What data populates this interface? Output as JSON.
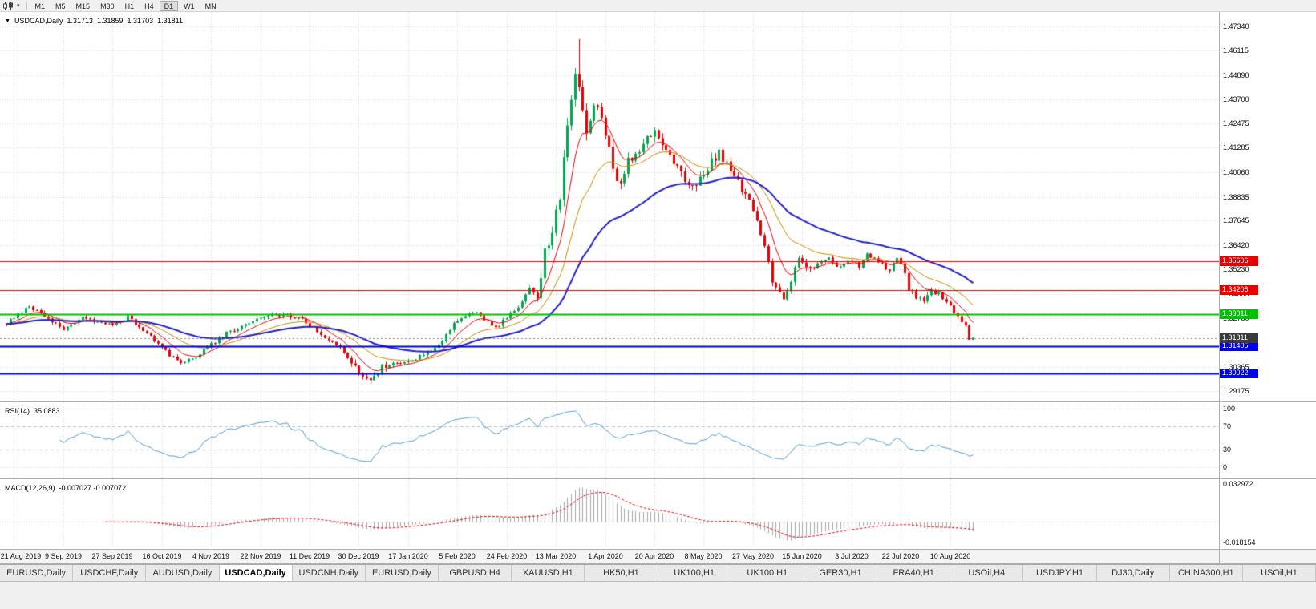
{
  "toolbar": {
    "timeframes": [
      "M1",
      "M5",
      "M15",
      "M30",
      "H1",
      "H4",
      "D1",
      "W1",
      "MN"
    ],
    "active": "D1"
  },
  "icons": {
    "chart_menu_arrow": "▼",
    "toolbar_dropdown_arrow": "▾"
  },
  "header": {
    "symbol": "USDCAD,Daily",
    "open": "1.31713",
    "high": "1.31859",
    "low": "1.31703",
    "close": "1.31811"
  },
  "chart_data": {
    "type": "candlestick",
    "symbol": "USDCAD",
    "timeframe": "Daily",
    "x_tick_labels": [
      "21 Aug 2019",
      "9 Sep 2019",
      "27 Sep 2019",
      "16 Oct 2019",
      "4 Nov 2019",
      "22 Nov 2019",
      "11 Dec 2019",
      "30 Dec 2019",
      "17 Jan 2020",
      "5 Feb 2020",
      "24 Feb 2020",
      "13 Mar 2020",
      "1 Apr 2020",
      "20 Apr 2020",
      "8 May 2020",
      "27 May 2020",
      "15 Jun 2020",
      "3 Jul 2020",
      "22 Jul 2020",
      "10 Aug 2020"
    ],
    "price_axis_labels": [
      "1.47340",
      "1.46115",
      "1.44890",
      "1.43700",
      "1.42475",
      "1.41285",
      "1.40060",
      "1.38835",
      "1.37645",
      "1.36420",
      "1.35230",
      "1.34005",
      "1.32780",
      "1.30365",
      "1.29175"
    ],
    "y_range": [
      1.288,
      1.478
    ],
    "num_candles": 256,
    "candles_per_tick": 13,
    "first_tick_index": 2,
    "session_high": 1.4669,
    "session_low": 1.2952,
    "last_ohlc": {
      "open": 1.31713,
      "high": 1.31859,
      "low": 1.31703,
      "close": 1.31811
    },
    "close_path_anchors": [
      [
        0,
        1.3255
      ],
      [
        3,
        1.33
      ],
      [
        6,
        1.3335
      ],
      [
        10,
        1.3288
      ],
      [
        15,
        1.3225
      ],
      [
        20,
        1.3285
      ],
      [
        24,
        1.3262
      ],
      [
        28,
        1.3244
      ],
      [
        32,
        1.3285
      ],
      [
        36,
        1.322
      ],
      [
        40,
        1.3155
      ],
      [
        43,
        1.3095
      ],
      [
        46,
        1.3052
      ],
      [
        50,
        1.309
      ],
      [
        54,
        1.3148
      ],
      [
        58,
        1.3205
      ],
      [
        62,
        1.3235
      ],
      [
        66,
        1.327
      ],
      [
        70,
        1.33
      ],
      [
        74,
        1.3295
      ],
      [
        78,
        1.3272
      ],
      [
        81,
        1.323
      ],
      [
        84,
        1.3185
      ],
      [
        88,
        1.3135
      ],
      [
        91,
        1.306
      ],
      [
        94,
        1.2985
      ],
      [
        96,
        1.2962
      ],
      [
        99,
        1.3035
      ],
      [
        103,
        1.3058
      ],
      [
        106,
        1.3062
      ],
      [
        109,
        1.3088
      ],
      [
        112,
        1.312
      ],
      [
        115,
        1.3165
      ],
      [
        118,
        1.3255
      ],
      [
        121,
        1.3298
      ],
      [
        124,
        1.3305
      ],
      [
        127,
        1.3262
      ],
      [
        129,
        1.3232
      ],
      [
        132,
        1.328
      ],
      [
        135,
        1.334
      ],
      [
        138,
        1.3425
      ],
      [
        140,
        1.339
      ],
      [
        142,
        1.36
      ],
      [
        144,
        1.372
      ],
      [
        146,
        1.387
      ],
      [
        148,
        1.424
      ],
      [
        150,
        1.451
      ],
      [
        151,
        1.443
      ],
      [
        153,
        1.421
      ],
      [
        155,
        1.436
      ],
      [
        157,
        1.428
      ],
      [
        158,
        1.421
      ],
      [
        160,
        1.401
      ],
      [
        162,
        1.3965
      ],
      [
        164,
        1.406
      ],
      [
        167,
        1.409
      ],
      [
        169,
        1.417
      ],
      [
        171,
        1.42
      ],
      [
        173,
        1.4135
      ],
      [
        176,
        1.4045
      ],
      [
        179,
        1.3975
      ],
      [
        181,
        1.3945
      ],
      [
        184,
        1.3985
      ],
      [
        186,
        1.406
      ],
      [
        188,
        1.4105
      ],
      [
        190,
        1.404
      ],
      [
        192,
        1.3985
      ],
      [
        194,
        1.3925
      ],
      [
        196,
        1.3855
      ],
      [
        198,
        1.376
      ],
      [
        200,
        1.3625
      ],
      [
        202,
        1.347
      ],
      [
        204,
        1.3405
      ],
      [
        205,
        1.338
      ],
      [
        207,
        1.3465
      ],
      [
        209,
        1.357
      ],
      [
        211,
        1.354
      ],
      [
        213,
        1.3532
      ],
      [
        215,
        1.3558
      ],
      [
        217,
        1.358
      ],
      [
        219,
        1.3528
      ],
      [
        221,
        1.3552
      ],
      [
        223,
        1.3565
      ],
      [
        225,
        1.3535
      ],
      [
        227,
        1.3595
      ],
      [
        229,
        1.357
      ],
      [
        231,
        1.3545
      ],
      [
        233,
        1.3515
      ],
      [
        235,
        1.3578
      ],
      [
        237,
        1.351
      ],
      [
        238,
        1.3428
      ],
      [
        240,
        1.3388
      ],
      [
        242,
        1.3352
      ],
      [
        244,
        1.3415
      ],
      [
        246,
        1.3398
      ],
      [
        248,
        1.336
      ],
      [
        249,
        1.3335
      ],
      [
        251,
        1.3292
      ],
      [
        253,
        1.324
      ],
      [
        254,
        1.3195
      ],
      [
        255,
        1.31811
      ]
    ],
    "horizontal_lines": [
      {
        "price": 1.35606,
        "label": "1.35606",
        "color": "#e80000",
        "width": 1
      },
      {
        "price": 1.34206,
        "label": "1.34206",
        "color": "#e80000",
        "width": 1
      },
      {
        "price": 1.33011,
        "label": "1.33011",
        "color": "#00c000",
        "width": 2
      },
      {
        "price": 1.31405,
        "label": "1.31405",
        "color": "#0000e8",
        "width": 2
      },
      {
        "price": 1.30022,
        "label": "1.30022",
        "color": "#0000e8",
        "width": 2
      }
    ],
    "current_price": {
      "value": 1.31811,
      "label": "1.31811",
      "tag_color": "#3a3a3a"
    },
    "candle_colors": {
      "up": "#00a650",
      "down": "#e80000"
    },
    "moving_averages": [
      {
        "name": "ma-fast",
        "period": 8,
        "color": "#e80000",
        "width": 1
      },
      {
        "name": "ma-mid",
        "period": 20,
        "color": "#c88a00",
        "width": 1
      },
      {
        "name": "ma-slow",
        "period": 45,
        "color": "#2020c8",
        "width": 2
      }
    ],
    "indicators": {
      "rsi": {
        "label": "RSI(14)",
        "value": "35.0883",
        "period": 14,
        "levels": [
          100,
          70,
          30,
          0
        ],
        "line_color": "#4f9cd8"
      },
      "macd": {
        "label": "MACD(12,26,9)",
        "value": "-0.007027 -0.007072",
        "fast": 12,
        "slow": 26,
        "signal": 9,
        "axis_max": "0.032972",
        "axis_min": "-0.018154",
        "hist_color": "#a8a8a8",
        "signal_color": "#e80000"
      }
    }
  },
  "tabs": {
    "items": [
      "EURUSD,Daily",
      "USDCHF,Daily",
      "AUDUSD,Daily",
      "USDCAD,Daily",
      "USDCNH,Daily",
      "EURUSD,Daily",
      "GBPUSD,H4",
      "XAUUSD,H1",
      "HK50,H1",
      "UK100,H1",
      "UK100,H1",
      "GER30,H1",
      "FRA40,H1",
      "USOil,H4",
      "USDJPY,H1",
      "DJ30,Daily",
      "CHINA300,H1",
      "USOil,H1"
    ],
    "active_index": 3
  }
}
